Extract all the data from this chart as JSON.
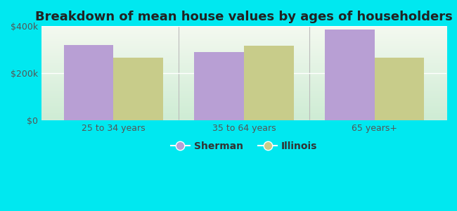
{
  "title": "Breakdown of mean house values by ages of householders",
  "categories": [
    "25 to 34 years",
    "35 to 64 years",
    "65 years+"
  ],
  "sherman_values": [
    320000,
    290000,
    385000
  ],
  "illinois_values": [
    265000,
    318000,
    265000
  ],
  "sherman_color": "#b89fd4",
  "illinois_color": "#c8cc8a",
  "background_color": "#00e8f0",
  "ylim": [
    0,
    400000
  ],
  "yticks": [
    0,
    200000,
    400000
  ],
  "ytick_labels": [
    "$0",
    "$200k",
    "$400k"
  ],
  "legend_labels": [
    "Sherman",
    "Illinois"
  ],
  "title_fontsize": 13,
  "tick_fontsize": 9,
  "legend_fontsize": 10,
  "bar_width": 0.38,
  "grad_top_color": "#f4f9f0",
  "grad_bottom_color": "#ceecd4"
}
